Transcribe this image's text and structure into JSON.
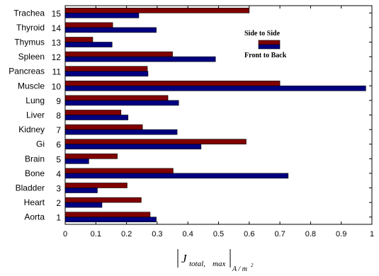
{
  "chart_data": {
    "type": "bar",
    "orientation": "horizontal",
    "categories": [
      "Aorta",
      "Heart",
      "Bladder",
      "Bone",
      "Brain",
      "Gi",
      "Kidney",
      "Liver",
      "Lung",
      "Muscle",
      "Pancreas",
      "Spleen",
      "Thymus",
      "Thyroid",
      "Trachea"
    ],
    "category_numbers": [
      "1",
      "2",
      "3",
      "4",
      "5",
      "6",
      "7",
      "8",
      "9",
      "10",
      "11",
      "12",
      "13",
      "14",
      "15"
    ],
    "series": [
      {
        "name": "Side to Side",
        "color": "#800000",
        "values": [
          0.277,
          0.248,
          0.202,
          0.352,
          0.17,
          0.59,
          0.252,
          0.182,
          0.335,
          0.7,
          0.268,
          0.35,
          0.09,
          0.155,
          0.6
        ]
      },
      {
        "name": "Front to Back",
        "color": "#000080",
        "values": [
          0.297,
          0.12,
          0.105,
          0.727,
          0.077,
          0.443,
          0.365,
          0.205,
          0.37,
          0.98,
          0.27,
          0.49,
          0.153,
          0.297,
          0.24
        ]
      }
    ],
    "xlim": [
      0,
      1
    ],
    "xticks": [
      "0",
      "0.1",
      "0.2",
      "0.3",
      "0.4",
      "0.5",
      "0.6",
      "0.7",
      "0.8",
      "0.9",
      "1"
    ],
    "xlabel": {
      "main": "J",
      "sub": "total",
      "sub2": "max",
      "unit": "A / m",
      "unit_sup": "2"
    },
    "legend_position": "top-right",
    "grid": false
  }
}
